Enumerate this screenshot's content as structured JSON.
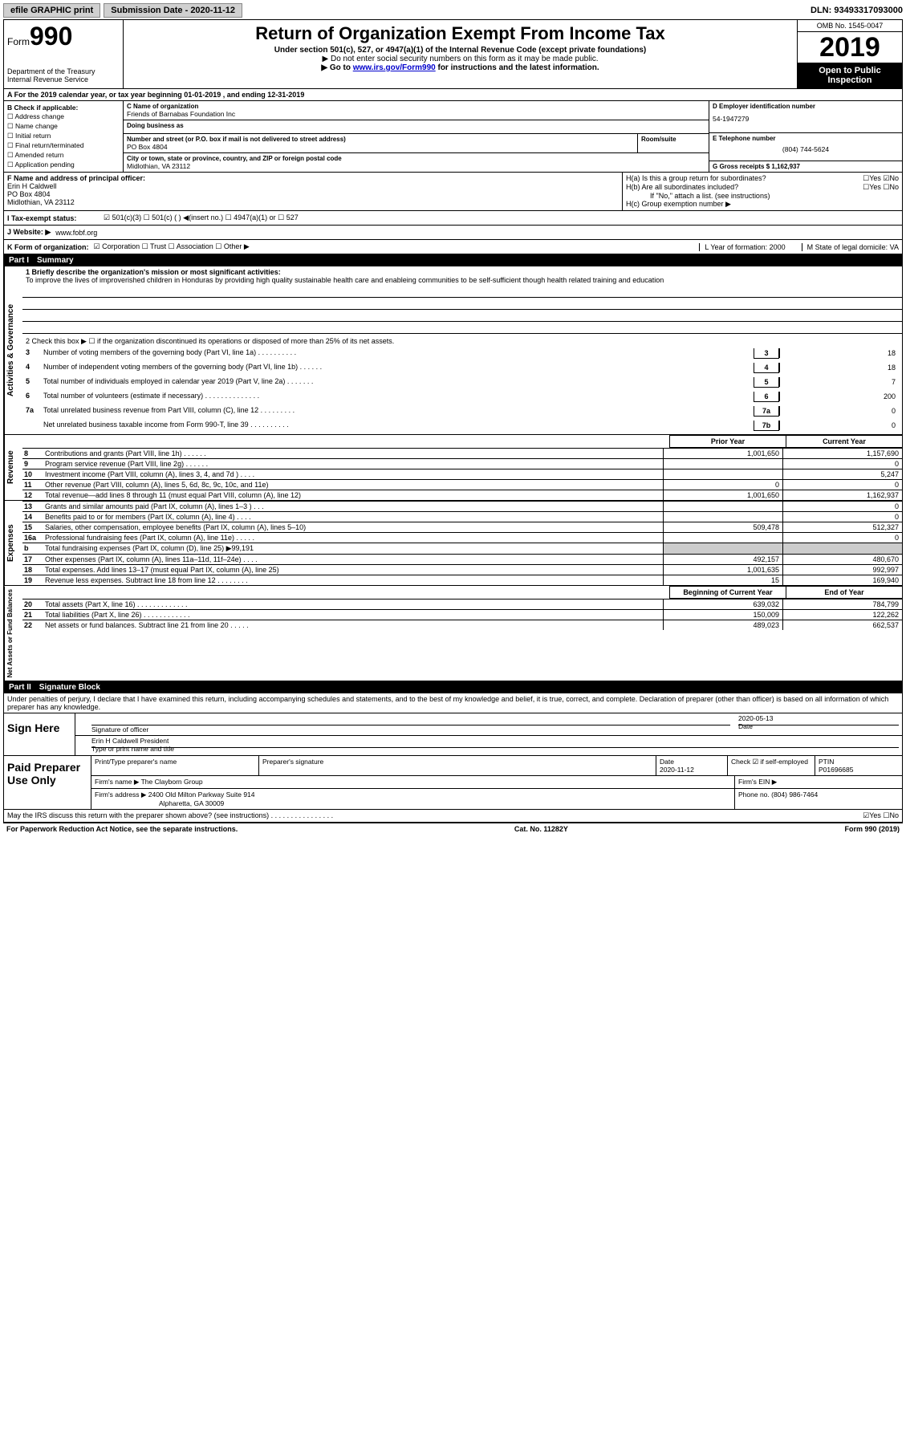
{
  "topbar": {
    "efile": "efile GRAPHIC print",
    "sub_label": "Submission Date - 2020-11-12",
    "dln": "DLN: 93493317093000"
  },
  "header": {
    "form_prefix": "Form",
    "form_number": "990",
    "dept": "Department of the Treasury",
    "irs": "Internal Revenue Service",
    "title": "Return of Organization Exempt From Income Tax",
    "subtitle": "Under section 501(c), 527, or 4947(a)(1) of the Internal Revenue Code (except private foundations)",
    "note1": "▶ Do not enter social security numbers on this form as it may be made public.",
    "note2_pre": "▶ Go to ",
    "note2_link": "www.irs.gov/Form990",
    "note2_post": " for instructions and the latest information.",
    "omb": "OMB No. 1545-0047",
    "year": "2019",
    "open": "Open to Public Inspection"
  },
  "rowA": "A   For the 2019 calendar year, or tax year beginning 01-01-2019    , and ending 12-31-2019",
  "colB": {
    "title": "B Check if applicable:",
    "items": [
      "☐ Address change",
      "☐ Name change",
      "☐ Initial return",
      "☐ Final return/terminated",
      "☐ Amended return",
      "☐ Application pending"
    ]
  },
  "colC": {
    "name_lbl": "C Name of organization",
    "name": "Friends of Barnabas Foundation Inc",
    "dba_lbl": "Doing business as",
    "dba": "",
    "addr_lbl": "Number and street (or P.O. box if mail is not delivered to street address)",
    "room_lbl": "Room/suite",
    "addr": "PO Box 4804",
    "city_lbl": "City or town, state or province, country, and ZIP or foreign postal code",
    "city": "Midlothian, VA  23112"
  },
  "colD": {
    "ein_lbl": "D Employer identification number",
    "ein": "54-1947279",
    "tel_lbl": "E Telephone number",
    "tel": "(804) 744-5624",
    "gross_lbl": "G Gross receipts $ 1,162,937"
  },
  "rowF": {
    "lbl": "F  Name and address of principal officer:",
    "name": "Erin H Caldwell",
    "addr1": "PO Box 4804",
    "addr2": "Midlothian, VA  23112"
  },
  "rowH": {
    "ha": "H(a)  Is this a group return for subordinates?",
    "ha_ans": "☐Yes  ☑No",
    "hb": "H(b)  Are all subordinates included?",
    "hb_ans": "☐Yes  ☐No",
    "hb_note": "If \"No,\" attach a list. (see instructions)",
    "hc": "H(c)  Group exemption number ▶"
  },
  "rowI": {
    "lbl": "I   Tax-exempt status:",
    "opts": "☑ 501(c)(3)    ☐ 501(c) (  ) ◀(insert no.)    ☐ 4947(a)(1) or  ☐ 527"
  },
  "rowJ": {
    "lbl": "J   Website: ▶",
    "val": "www.fobf.org"
  },
  "rowK": {
    "lbl": "K Form of organization:",
    "opts": "☑ Corporation  ☐ Trust  ☐ Association  ☐ Other ▶",
    "l": "L Year of formation: 2000",
    "m": "M State of legal domicile: VA"
  },
  "part1": {
    "header_pt": "Part I",
    "header_title": "Summary",
    "line1_lbl": "1   Briefly describe the organization's mission or most significant activities:",
    "mission": "To improve the lives of improverished children in Honduras by providing high quality sustainable health care and enableing communities to be self-sufficient though health related training and education",
    "line2": "2   Check this box ▶ ☐  if the organization discontinued its operations or disposed of more than 25% of its net assets.",
    "gov_lines": [
      {
        "n": "3",
        "d": "Number of voting members of the governing body (Part VI, line 1a)   .   .   .   .   .   .   .   .   .   .",
        "box": "3",
        "v": "18"
      },
      {
        "n": "4",
        "d": "Number of independent voting members of the governing body (Part VI, line 1b)   .   .   .   .   .   .",
        "box": "4",
        "v": "18"
      },
      {
        "n": "5",
        "d": "Total number of individuals employed in calendar year 2019 (Part V, line 2a)  .   .   .   .   .   .   .",
        "box": "5",
        "v": "7"
      },
      {
        "n": "6",
        "d": "Total number of volunteers (estimate if necessary)   .   .   .   .   .   .   .   .   .   .   .   .   .   .",
        "box": "6",
        "v": "200"
      },
      {
        "n": "7a",
        "d": "Total unrelated business revenue from Part VIII, column (C), line 12   .   .   .   .   .   .   .   .   .",
        "box": "7a",
        "v": "0"
      },
      {
        "n": "",
        "d": "Net unrelated business taxable income from Form 990-T, line 39   .   .   .   .   .   .   .   .   .   .",
        "box": "7b",
        "v": "0"
      }
    ],
    "col_prior": "Prior Year",
    "col_current": "Current Year",
    "revenue": [
      {
        "n": "8",
        "d": "Contributions and grants (Part VIII, line 1h)   .   .   .   .   .   .",
        "v1": "1,001,650",
        "v2": "1,157,690"
      },
      {
        "n": "9",
        "d": "Program service revenue (Part VIII, line 2g)   .   .   .   .   .   .",
        "v1": "",
        "v2": "0"
      },
      {
        "n": "10",
        "d": "Investment income (Part VIII, column (A), lines 3, 4, and 7d )   .   .   .   .",
        "v1": "",
        "v2": "5,247"
      },
      {
        "n": "11",
        "d": "Other revenue (Part VIII, column (A), lines 5, 6d, 8c, 9c, 10c, and 11e)",
        "v1": "0",
        "v2": "0"
      },
      {
        "n": "12",
        "d": "Total revenue—add lines 8 through 11 (must equal Part VIII, column (A), line 12)",
        "v1": "1,001,650",
        "v2": "1,162,937"
      }
    ],
    "expenses": [
      {
        "n": "13",
        "d": "Grants and similar amounts paid (Part IX, column (A), lines 1–3 )   .   .   .",
        "v1": "",
        "v2": "0"
      },
      {
        "n": "14",
        "d": "Benefits paid to or for members (Part IX, column (A), line 4)   .   .   .   .",
        "v1": "",
        "v2": "0"
      },
      {
        "n": "15",
        "d": "Salaries, other compensation, employee benefits (Part IX, column (A), lines 5–10)",
        "v1": "509,478",
        "v2": "512,327"
      },
      {
        "n": "16a",
        "d": "Professional fundraising fees (Part IX, column (A), line 11e)   .   .   .   .   .",
        "v1": "",
        "v2": "0"
      },
      {
        "n": "b",
        "d": "Total fundraising expenses (Part IX, column (D), line 25) ▶99,191",
        "v1": "shaded",
        "v2": "shaded"
      },
      {
        "n": "17",
        "d": "Other expenses (Part IX, column (A), lines 11a–11d, 11f–24e)   .   .   .   .",
        "v1": "492,157",
        "v2": "480,670"
      },
      {
        "n": "18",
        "d": "Total expenses. Add lines 13–17 (must equal Part IX, column (A), line 25)",
        "v1": "1,001,635",
        "v2": "992,997"
      },
      {
        "n": "19",
        "d": "Revenue less expenses. Subtract line 18 from line 12 .   .   .   .   .   .   .   .",
        "v1": "15",
        "v2": "169,940"
      }
    ],
    "col_begin": "Beginning of Current Year",
    "col_end": "End of Year",
    "netassets": [
      {
        "n": "20",
        "d": "Total assets (Part X, line 16)  .   .   .   .   .   .   .   .   .   .   .   .   .",
        "v1": "639,032",
        "v2": "784,799"
      },
      {
        "n": "21",
        "d": "Total liabilities (Part X, line 26)  .   .   .   .   .   .   .   .   .   .   .   .",
        "v1": "150,009",
        "v2": "122,262"
      },
      {
        "n": "22",
        "d": "Net assets or fund balances. Subtract line 21 from line 20  .   .   .   .   .",
        "v1": "489,023",
        "v2": "662,537"
      }
    ]
  },
  "part2": {
    "header_pt": "Part II",
    "header_title": "Signature Block",
    "penalty": "Under penalties of perjury, I declare that I have examined this return, including accompanying schedules and statements, and to the best of my knowledge and belief, it is true, correct, and complete. Declaration of preparer (other than officer) is based on all information of which preparer has any knowledge.",
    "sign_here": "Sign Here",
    "sig_officer": "Signature of officer",
    "sig_date": "2020-05-13",
    "sig_date_lbl": "Date",
    "sig_name": "Erin H Caldwell  President",
    "sig_name_lbl": "Type or print name and title",
    "paid": "Paid Preparer Use Only",
    "prep_name_lbl": "Print/Type preparer's name",
    "prep_sig_lbl": "Preparer's signature",
    "prep_date_lbl": "Date",
    "prep_date": "2020-11-12",
    "prep_check": "Check ☑ if self-employed",
    "ptin_lbl": "PTIN",
    "ptin": "P01696685",
    "firm_name_lbl": "Firm's name      ▶",
    "firm_name": "The Clayborn Group",
    "firm_ein_lbl": "Firm's EIN ▶",
    "firm_addr_lbl": "Firm's address ▶",
    "firm_addr1": "2400 Old Milton Parkway Suite 914",
    "firm_addr2": "Alpharetta, GA  30009",
    "phone_lbl": "Phone no. (804) 986-7464",
    "discuss": "May the IRS discuss this return with the preparer shown above? (see instructions)   .   .   .   .   .   .   .   .   .   .   .   .   .   .   .   .",
    "discuss_ans": "☑Yes  ☐No"
  },
  "footer": {
    "left": "For Paperwork Reduction Act Notice, see the separate instructions.",
    "mid": "Cat. No. 11282Y",
    "right": "Form 990 (2019)"
  }
}
